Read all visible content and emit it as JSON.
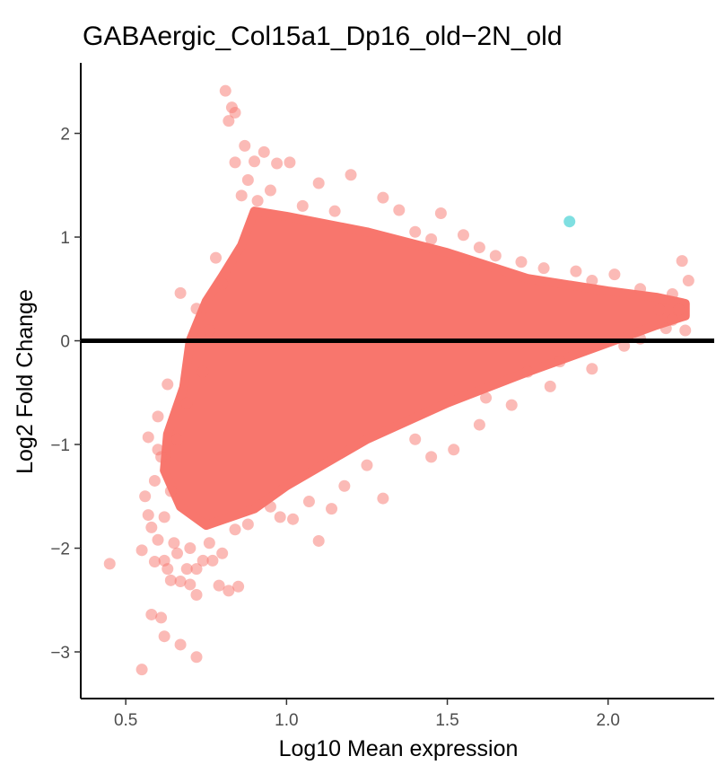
{
  "chart_data": {
    "type": "scatter",
    "title": "GABAergic_Col15a1_Dp16_old−2N_old",
    "xlabel": "Log10 Mean expression",
    "ylabel": "Log2 Fold Change",
    "xlim": [
      0.36,
      2.33
    ],
    "ylim": [
      -3.45,
      2.68
    ],
    "x_ticks": [
      0.5,
      1.0,
      1.5,
      2.0
    ],
    "x_tick_labels": [
      "0.5",
      "1.0",
      "1.5",
      "2.0"
    ],
    "y_ticks": [
      -3,
      -2,
      -1,
      0,
      1,
      2
    ],
    "y_tick_labels": [
      "−3",
      "−2",
      "−1",
      "0",
      "1",
      "2"
    ],
    "grid": false,
    "reference_line": {
      "y": 0,
      "color": "#000000"
    },
    "series": [
      {
        "color": "#F8766D",
        "opacity": 0.5,
        "dense_region": {
          "upper_envelope": [
            [
              0.7,
              0.0
            ],
            [
              0.75,
              0.38
            ],
            [
              0.8,
              0.62
            ],
            [
              0.86,
              0.92
            ],
            [
              0.9,
              1.25
            ],
            [
              1.0,
              1.2
            ],
            [
              1.25,
              1.05
            ],
            [
              1.5,
              0.85
            ],
            [
              1.75,
              0.6
            ],
            [
              2.0,
              0.48
            ],
            [
              2.15,
              0.42
            ],
            [
              2.24,
              0.36
            ]
          ],
          "lower_envelope": [
            [
              0.7,
              0.0
            ],
            [
              0.68,
              -0.45
            ],
            [
              0.63,
              -0.9
            ],
            [
              0.62,
              -1.25
            ],
            [
              0.67,
              -1.6
            ],
            [
              0.75,
              -1.78
            ],
            [
              0.9,
              -1.62
            ],
            [
              1.0,
              -1.4
            ],
            [
              1.25,
              -0.95
            ],
            [
              1.5,
              -0.6
            ],
            [
              1.75,
              -0.3
            ],
            [
              2.0,
              -0.02
            ],
            [
              2.15,
              0.15
            ],
            [
              2.24,
              0.24
            ]
          ]
        },
        "points": [
          [
            0.81,
            2.41
          ],
          [
            0.83,
            2.25
          ],
          [
            0.84,
            2.2
          ],
          [
            0.82,
            2.12
          ],
          [
            0.87,
            1.88
          ],
          [
            0.93,
            1.82
          ],
          [
            0.9,
            1.73
          ],
          [
            0.97,
            1.71
          ],
          [
            1.01,
            1.72
          ],
          [
            0.84,
            1.72
          ],
          [
            1.2,
            1.6
          ],
          [
            1.1,
            1.52
          ],
          [
            1.3,
            1.38
          ],
          [
            1.35,
            1.26
          ],
          [
            1.48,
            1.23
          ],
          [
            1.55,
            1.02
          ],
          [
            1.6,
            0.9
          ],
          [
            1.73,
            0.76
          ],
          [
            1.9,
            0.67
          ],
          [
            2.02,
            0.64
          ],
          [
            2.23,
            0.77
          ],
          [
            2.25,
            0.58
          ],
          [
            2.22,
            0.3
          ],
          [
            2.18,
            0.12
          ],
          [
            2.24,
            0.1
          ],
          [
            0.67,
            0.46
          ],
          [
            0.72,
            0.31
          ],
          [
            0.78,
            0.8
          ],
          [
            0.8,
            0.55
          ],
          [
            0.63,
            -0.42
          ],
          [
            0.6,
            -0.73
          ],
          [
            0.57,
            -0.93
          ],
          [
            0.56,
            -1.5
          ],
          [
            0.57,
            -1.68
          ],
          [
            0.58,
            -1.8
          ],
          [
            0.6,
            -1.92
          ],
          [
            0.55,
            -2.02
          ],
          [
            0.59,
            -2.13
          ],
          [
            0.62,
            -2.12
          ],
          [
            0.63,
            -2.2
          ],
          [
            0.64,
            -2.31
          ],
          [
            0.67,
            -2.32
          ],
          [
            0.7,
            -2.35
          ],
          [
            0.72,
            -2.45
          ],
          [
            0.79,
            -2.36
          ],
          [
            0.82,
            -2.41
          ],
          [
            0.85,
            -2.37
          ],
          [
            0.72,
            -2.2
          ],
          [
            0.77,
            -2.12
          ],
          [
            0.45,
            -2.15
          ],
          [
            0.58,
            -2.64
          ],
          [
            0.61,
            -2.67
          ],
          [
            0.62,
            -2.85
          ],
          [
            0.67,
            -2.93
          ],
          [
            0.72,
            -3.05
          ],
          [
            0.55,
            -3.17
          ],
          [
            1.1,
            -1.93
          ],
          [
            1.02,
            -1.72
          ],
          [
            1.14,
            -1.62
          ],
          [
            1.3,
            -1.52
          ],
          [
            1.45,
            -1.12
          ],
          [
            1.52,
            -1.05
          ],
          [
            1.6,
            -0.81
          ],
          [
            1.7,
            -0.62
          ],
          [
            1.82,
            -0.44
          ],
          [
            1.95,
            -0.27
          ],
          [
            2.05,
            -0.05
          ],
          [
            2.1,
            0.02
          ],
          [
            0.95,
            -1.6
          ],
          [
            0.88,
            -1.77
          ],
          [
            0.76,
            -1.95
          ],
          [
            0.7,
            -2.0
          ],
          [
            0.65,
            -1.95
          ],
          [
            0.62,
            -1.7
          ],
          [
            0.64,
            -1.45
          ],
          [
            0.61,
            -1.12
          ],
          [
            0.66,
            -0.95
          ],
          [
            0.69,
            -0.6
          ],
          [
            0.74,
            -0.3
          ],
          [
            0.76,
            0.1
          ],
          [
            0.86,
            1.4
          ],
          [
            0.88,
            1.55
          ],
          [
            0.91,
            1.35
          ],
          [
            0.95,
            1.45
          ],
          [
            1.05,
            1.3
          ],
          [
            1.15,
            1.25
          ],
          [
            1.4,
            1.05
          ],
          [
            1.45,
            0.98
          ],
          [
            1.65,
            0.82
          ],
          [
            1.8,
            0.7
          ],
          [
            1.95,
            0.58
          ],
          [
            2.1,
            0.5
          ],
          [
            2.2,
            0.45
          ],
          [
            2.16,
            0.3
          ],
          [
            2.2,
            0.2
          ],
          [
            1.85,
            -0.2
          ],
          [
            1.75,
            -0.3
          ],
          [
            1.62,
            -0.55
          ],
          [
            1.4,
            -0.95
          ],
          [
            1.25,
            -1.2
          ],
          [
            1.18,
            -1.4
          ],
          [
            1.07,
            -1.55
          ],
          [
            0.98,
            -1.7
          ],
          [
            0.84,
            -1.82
          ],
          [
            0.8,
            -2.05
          ],
          [
            0.74,
            -2.12
          ],
          [
            0.69,
            -2.2
          ],
          [
            0.66,
            -2.05
          ],
          [
            0.59,
            -1.35
          ],
          [
            0.6,
            -1.05
          ]
        ]
      },
      {
        "color": "#00BFC4",
        "opacity": 0.5,
        "points": [
          [
            1.88,
            1.15
          ]
        ]
      }
    ]
  }
}
